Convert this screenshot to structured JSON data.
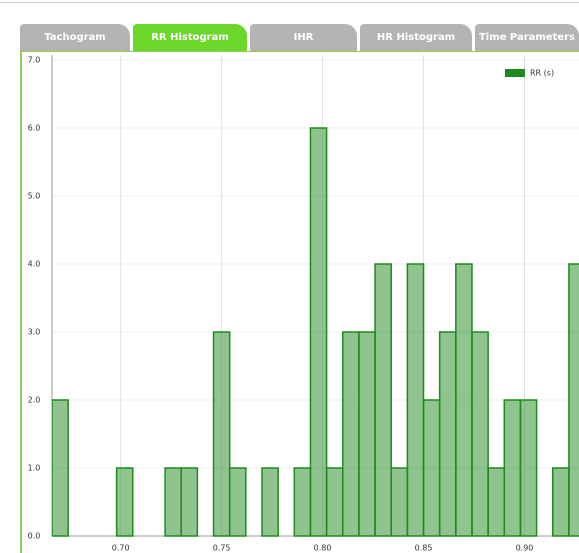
{
  "tabs": [
    {
      "label": "Tachogram",
      "active": false
    },
    {
      "label": "RR Histogram",
      "active": true
    },
    {
      "label": "IHR",
      "active": false
    },
    {
      "label": "HR Histogram",
      "active": false
    },
    {
      "label": "Time Parameters",
      "active": false
    }
  ],
  "chart_data": {
    "type": "histogram",
    "bins": [
      0.666,
      0.674,
      0.682,
      0.69,
      0.698,
      0.706,
      0.714,
      0.722,
      0.73,
      0.738,
      0.746,
      0.754,
      0.762,
      0.77,
      0.778,
      0.786,
      0.794,
      0.802,
      0.81,
      0.818,
      0.826,
      0.834,
      0.842,
      0.85,
      0.858,
      0.866,
      0.874,
      0.882,
      0.89,
      0.898,
      0.906,
      0.914,
      0.922,
      0.93
    ],
    "series": [
      {
        "name": "RR (s)",
        "color": "#1f8a1f",
        "values": [
          2,
          0,
          0,
          0,
          1,
          0,
          0,
          1,
          1,
          0,
          3,
          1,
          0,
          1,
          0,
          1,
          6,
          1,
          3,
          3,
          4,
          1,
          4,
          2,
          3,
          4,
          3,
          1,
          2,
          2,
          0,
          1,
          4
        ]
      }
    ],
    "xlim": [
      0.666,
      0.927
    ],
    "ylim": [
      0,
      7
    ],
    "xticks": [
      {
        "value": 0.7,
        "label": "0.70"
      },
      {
        "value": 0.75,
        "label": "0.75"
      },
      {
        "value": 0.8,
        "label": "0.80"
      },
      {
        "value": 0.85,
        "label": "0.85"
      },
      {
        "value": 0.9,
        "label": "0.90"
      }
    ],
    "yticks": [
      {
        "value": 0,
        "label": "0.0"
      },
      {
        "value": 1,
        "label": "1.0"
      },
      {
        "value": 2,
        "label": "2.0"
      },
      {
        "value": 3,
        "label": "3.0"
      },
      {
        "value": 4,
        "label": "4.0"
      },
      {
        "value": 5,
        "label": "5.0"
      },
      {
        "value": 6,
        "label": "6.0"
      },
      {
        "value": 7,
        "label": "7.0"
      }
    ],
    "grid": true,
    "legend": "top-right"
  }
}
